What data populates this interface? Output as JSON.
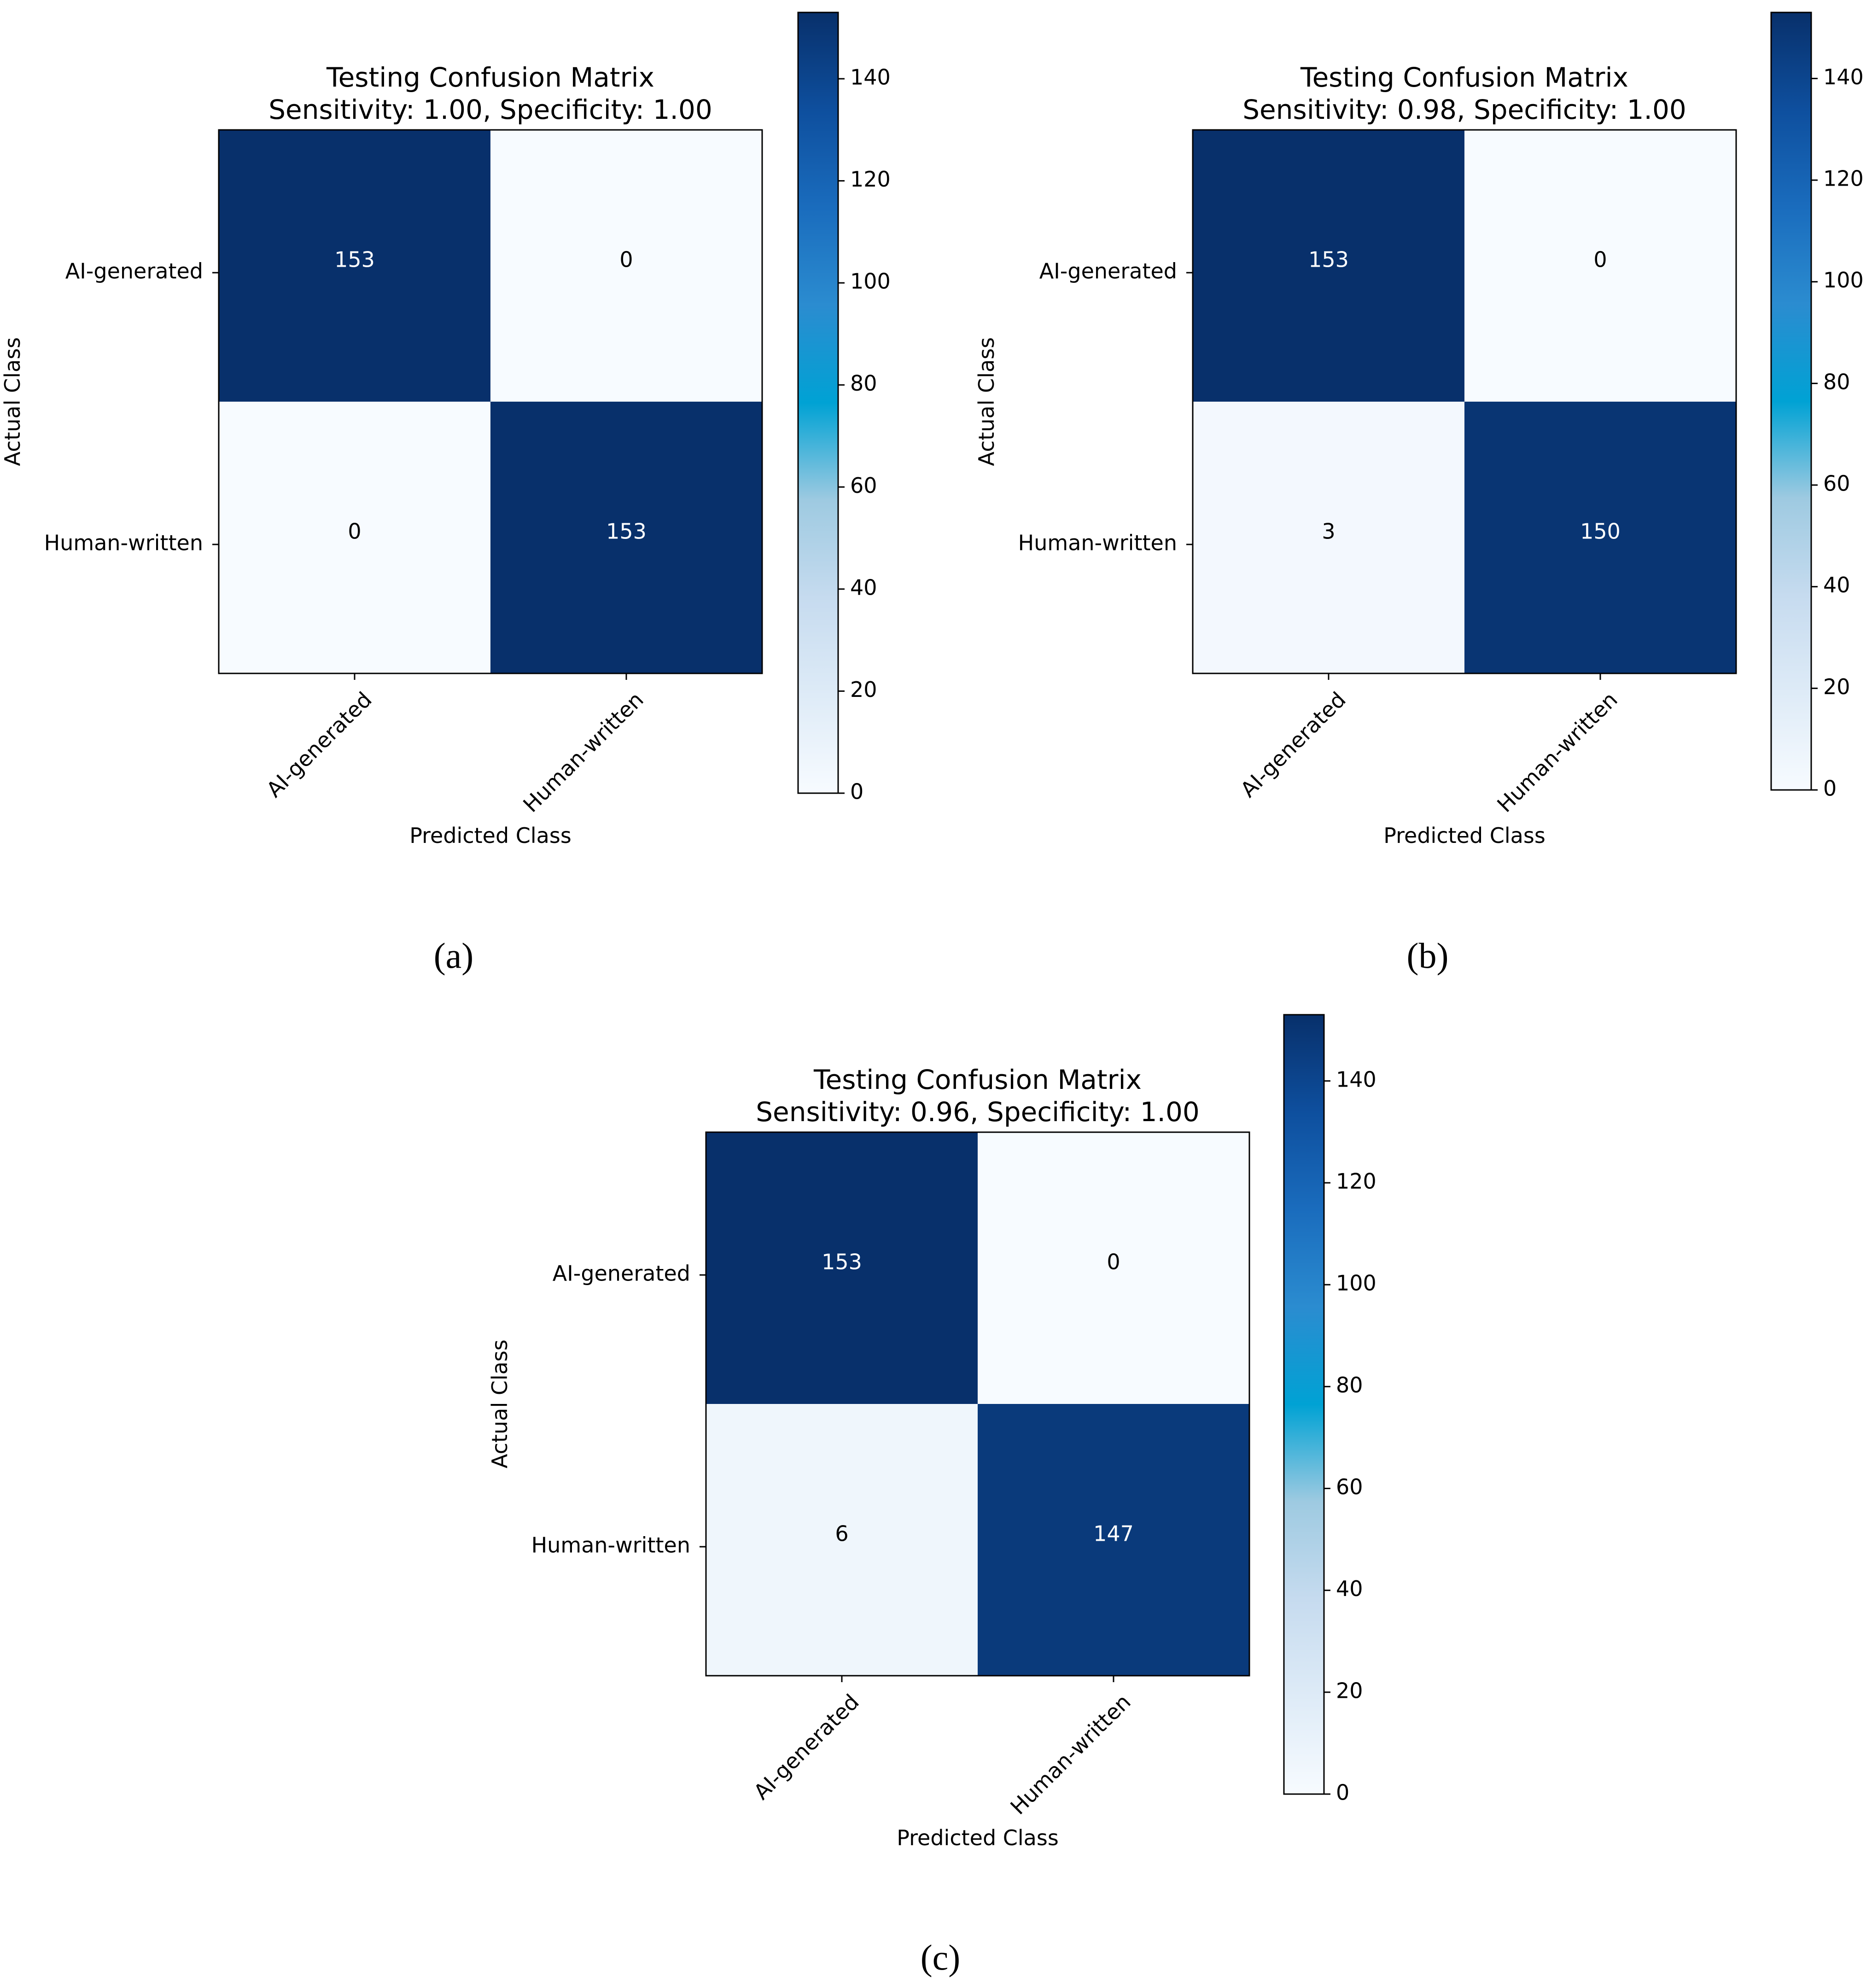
{
  "chart_data": [
    {
      "type": "heatmap",
      "panel": "(a)",
      "title": "Testing Confusion Matrix",
      "subtitle": "Sensitivity: 1.00, Specificity: 1.00",
      "xlabel": "Predicted Class",
      "ylabel": "Actual Class",
      "x_categories": [
        "AI-generated",
        "Human-written"
      ],
      "y_categories": [
        "AI-generated",
        "Human-written"
      ],
      "values": [
        [
          153,
          0
        ],
        [
          0,
          153
        ]
      ],
      "colorscale": "Blues",
      "colorbar": {
        "range": [
          0,
          153
        ],
        "ticks": [
          0,
          20,
          40,
          60,
          80,
          100,
          120,
          140
        ]
      }
    },
    {
      "type": "heatmap",
      "panel": "(b)",
      "title": "Testing Confusion Matrix",
      "subtitle": "Sensitivity: 0.98, Specificity: 1.00",
      "xlabel": "Predicted Class",
      "ylabel": "Actual Class",
      "x_categories": [
        "AI-generated",
        "Human-written"
      ],
      "y_categories": [
        "AI-generated",
        "Human-written"
      ],
      "values": [
        [
          153,
          0
        ],
        [
          3,
          150
        ]
      ],
      "colorscale": "Blues",
      "colorbar": {
        "range": [
          0,
          153
        ],
        "ticks": [
          0,
          20,
          40,
          60,
          80,
          100,
          120,
          140
        ]
      }
    },
    {
      "type": "heatmap",
      "panel": "(c)",
      "title": "Testing Confusion Matrix",
      "subtitle": "Sensitivity: 0.96, Specificity: 1.00",
      "xlabel": "Predicted Class",
      "ylabel": "Actual Class",
      "x_categories": [
        "AI-generated",
        "Human-written"
      ],
      "y_categories": [
        "AI-generated",
        "Human-written"
      ],
      "values": [
        [
          153,
          0
        ],
        [
          6,
          147
        ]
      ],
      "colorscale": "Blues",
      "colorbar": {
        "range": [
          0,
          153
        ],
        "ticks": [
          0,
          20,
          40,
          60,
          80,
          100,
          120,
          140
        ]
      }
    }
  ]
}
